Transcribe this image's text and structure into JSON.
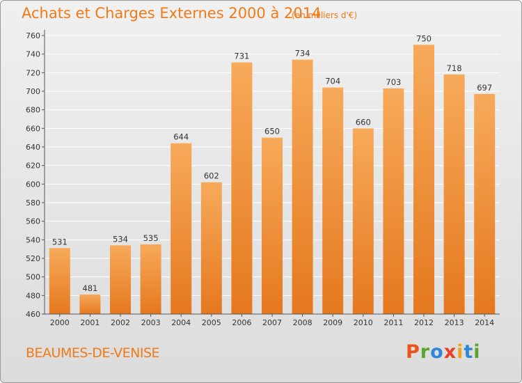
{
  "header": {
    "title": "Achats et Charges Externes 2000 à 2014",
    "subtitle": "(en milliers d'€)"
  },
  "place_name": "BEAUMES-DE-VENISE",
  "brand": {
    "letters": [
      "P",
      "r",
      "o",
      "x",
      "i",
      "t",
      "i"
    ],
    "letter_colors": [
      "#e8541b",
      "#5aa52d",
      "#2f87d9",
      "#e83f25",
      "#f1a31b",
      "#2f87d9",
      "#5aa52d"
    ]
  },
  "colors": {
    "bar_light": "#f7aa5a",
    "bar_dark": "#e5781f",
    "grid": "#ffffff",
    "axis": "#555555"
  },
  "chart_data": {
    "type": "bar",
    "categories": [
      "2000",
      "2001",
      "2002",
      "2003",
      "2004",
      "2005",
      "2006",
      "2007",
      "2008",
      "2009",
      "2010",
      "2011",
      "2012",
      "2013",
      "2014"
    ],
    "values": [
      531,
      481,
      534,
      535,
      644,
      602,
      731,
      650,
      734,
      704,
      660,
      703,
      750,
      718,
      697
    ],
    "ylim": [
      460,
      760
    ],
    "yticks": [
      460,
      480,
      500,
      520,
      540,
      560,
      580,
      600,
      620,
      640,
      660,
      680,
      700,
      720,
      740,
      760
    ],
    "grid": true,
    "data_labels": true
  }
}
